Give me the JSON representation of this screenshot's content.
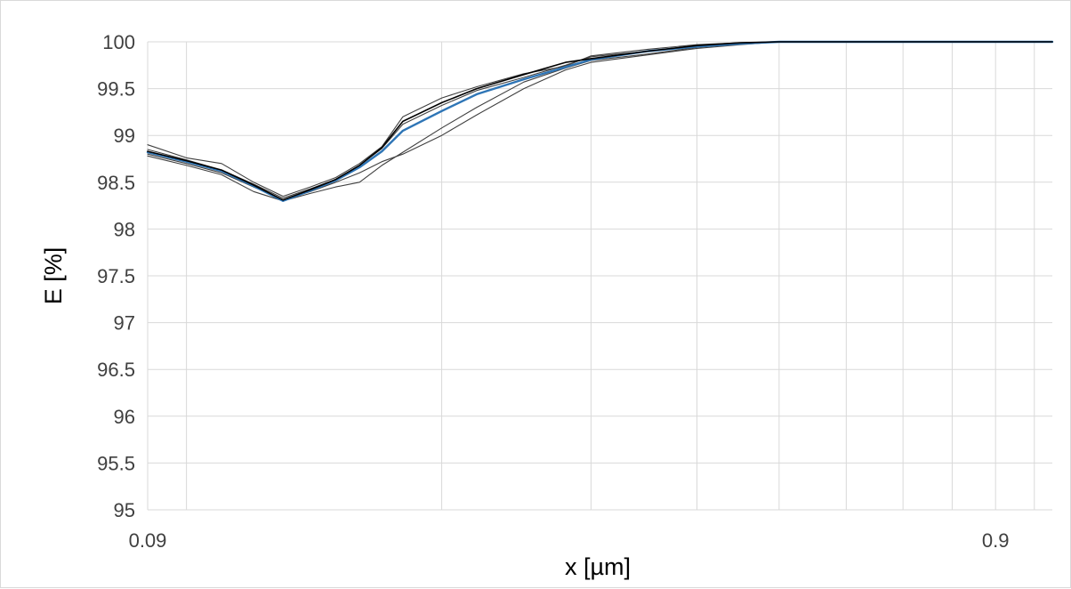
{
  "chart_data": {
    "type": "line",
    "xlabel": "x [µm]",
    "ylabel": "E [%]",
    "xscale": "log",
    "xlim": [
      0.09,
      1.05
    ],
    "ylim": [
      95,
      100
    ],
    "x_tick_labels": [
      "0.09",
      "0.9"
    ],
    "y_ticks": [
      95,
      95.5,
      96,
      96.5,
      97,
      97.5,
      98,
      98.5,
      99,
      99.5,
      100
    ],
    "y_tick_labels": [
      "95",
      "95.5",
      "96",
      "96.5",
      "97",
      "97.5",
      "98",
      "98.5",
      "99",
      "99.5",
      "100"
    ],
    "grid": true,
    "legend": "none",
    "colors": {
      "highlight": "#2e75b6",
      "others": "#404040",
      "final": "#000000",
      "grid": "#d9d9d9"
    },
    "series": [
      {
        "style": "gray",
        "x": [
          0.09,
          0.1,
          0.11,
          0.12,
          0.13,
          0.14,
          0.15,
          0.16,
          0.17,
          0.18,
          0.2,
          0.22,
          0.25,
          0.28,
          0.3,
          0.35,
          0.4,
          0.45,
          0.5,
          0.6,
          0.7,
          1.05
        ],
        "y": [
          98.9,
          98.76,
          98.7,
          98.5,
          98.35,
          98.45,
          98.55,
          98.7,
          98.88,
          99.2,
          99.4,
          99.52,
          99.66,
          99.74,
          99.85,
          99.92,
          99.97,
          99.99,
          100,
          100,
          100,
          100
        ]
      },
      {
        "style": "gray",
        "x": [
          0.09,
          0.1,
          0.11,
          0.12,
          0.13,
          0.14,
          0.15,
          0.16,
          0.17,
          0.18,
          0.2,
          0.22,
          0.25,
          0.28,
          0.3,
          0.35,
          0.4,
          0.45,
          0.5,
          0.6,
          0.7,
          1.05
        ],
        "y": [
          98.78,
          98.68,
          98.58,
          98.4,
          98.3,
          98.38,
          98.45,
          98.5,
          98.68,
          98.82,
          99.08,
          99.3,
          99.57,
          99.72,
          99.8,
          99.87,
          99.94,
          99.98,
          100,
          100,
          100,
          100
        ]
      },
      {
        "style": "gray",
        "x": [
          0.09,
          0.1,
          0.11,
          0.12,
          0.13,
          0.14,
          0.15,
          0.16,
          0.17,
          0.18,
          0.2,
          0.22,
          0.25,
          0.28,
          0.3,
          0.35,
          0.4,
          0.45,
          0.5,
          0.6,
          0.7,
          1.05
        ],
        "y": [
          98.85,
          98.74,
          98.63,
          98.48,
          98.33,
          98.43,
          98.53,
          98.68,
          98.86,
          99.12,
          99.32,
          99.48,
          99.62,
          99.75,
          99.84,
          99.9,
          99.96,
          99.99,
          100,
          100,
          100,
          100
        ]
      },
      {
        "style": "gray",
        "x": [
          0.09,
          0.1,
          0.11,
          0.12,
          0.13,
          0.14,
          0.15,
          0.16,
          0.17,
          0.18,
          0.2,
          0.22,
          0.25,
          0.28,
          0.3,
          0.35,
          0.4,
          0.45,
          0.5,
          0.6,
          0.7,
          1.05
        ],
        "y": [
          98.8,
          98.7,
          98.6,
          98.45,
          98.31,
          98.4,
          98.5,
          98.6,
          98.72,
          98.8,
          99.0,
          99.22,
          99.5,
          99.7,
          99.78,
          99.86,
          99.93,
          99.97,
          100,
          100,
          100,
          100
        ]
      },
      {
        "style": "highlight",
        "x": [
          0.09,
          0.1,
          0.11,
          0.12,
          0.13,
          0.14,
          0.15,
          0.16,
          0.17,
          0.18,
          0.2,
          0.22,
          0.25,
          0.28,
          0.3,
          0.35,
          0.4,
          0.45,
          0.5,
          0.6,
          0.7,
          1.05
        ],
        "y": [
          98.82,
          98.72,
          98.62,
          98.46,
          98.3,
          98.41,
          98.52,
          98.66,
          98.83,
          99.05,
          99.26,
          99.44,
          99.6,
          99.73,
          99.81,
          99.9,
          99.95,
          99.98,
          100,
          100,
          100,
          100
        ]
      },
      {
        "style": "final",
        "x": [
          0.09,
          0.1,
          0.11,
          0.12,
          0.13,
          0.14,
          0.15,
          0.16,
          0.17,
          0.18,
          0.2,
          0.22,
          0.25,
          0.28,
          0.3,
          0.35,
          0.4,
          0.45,
          0.5,
          0.6,
          0.7,
          1.05
        ],
        "y": [
          98.83,
          98.73,
          98.63,
          98.47,
          98.31,
          98.42,
          98.53,
          98.68,
          98.87,
          99.15,
          99.35,
          99.5,
          99.65,
          99.78,
          99.82,
          99.9,
          99.96,
          99.99,
          100,
          100,
          100,
          100
        ]
      }
    ]
  }
}
